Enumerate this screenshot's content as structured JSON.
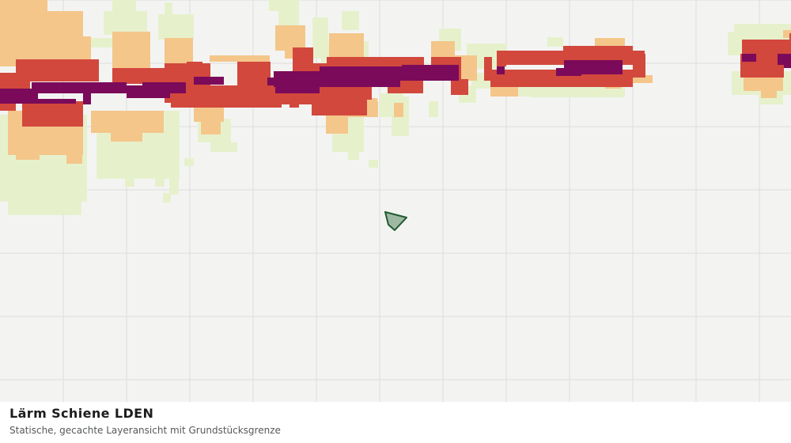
{
  "caption": {
    "title": "Lärm Schiene LDEN",
    "subtitle": "Statische, gecachte Layeransicht mit Grundstücksgrenze"
  },
  "map": {
    "background": "#f3f4f2",
    "grid_color": "#dcdedb",
    "noise_classes": [
      {
        "level": 1,
        "color": "#e6f1cc"
      },
      {
        "level": 2,
        "color": "#f4c68a"
      },
      {
        "level": 3,
        "color": "#d2483d"
      },
      {
        "level": 4,
        "color": "#7b0a5a"
      }
    ],
    "parcel": {
      "fill": "#9fb8a4",
      "stroke": "#1f5a30"
    }
  }
}
